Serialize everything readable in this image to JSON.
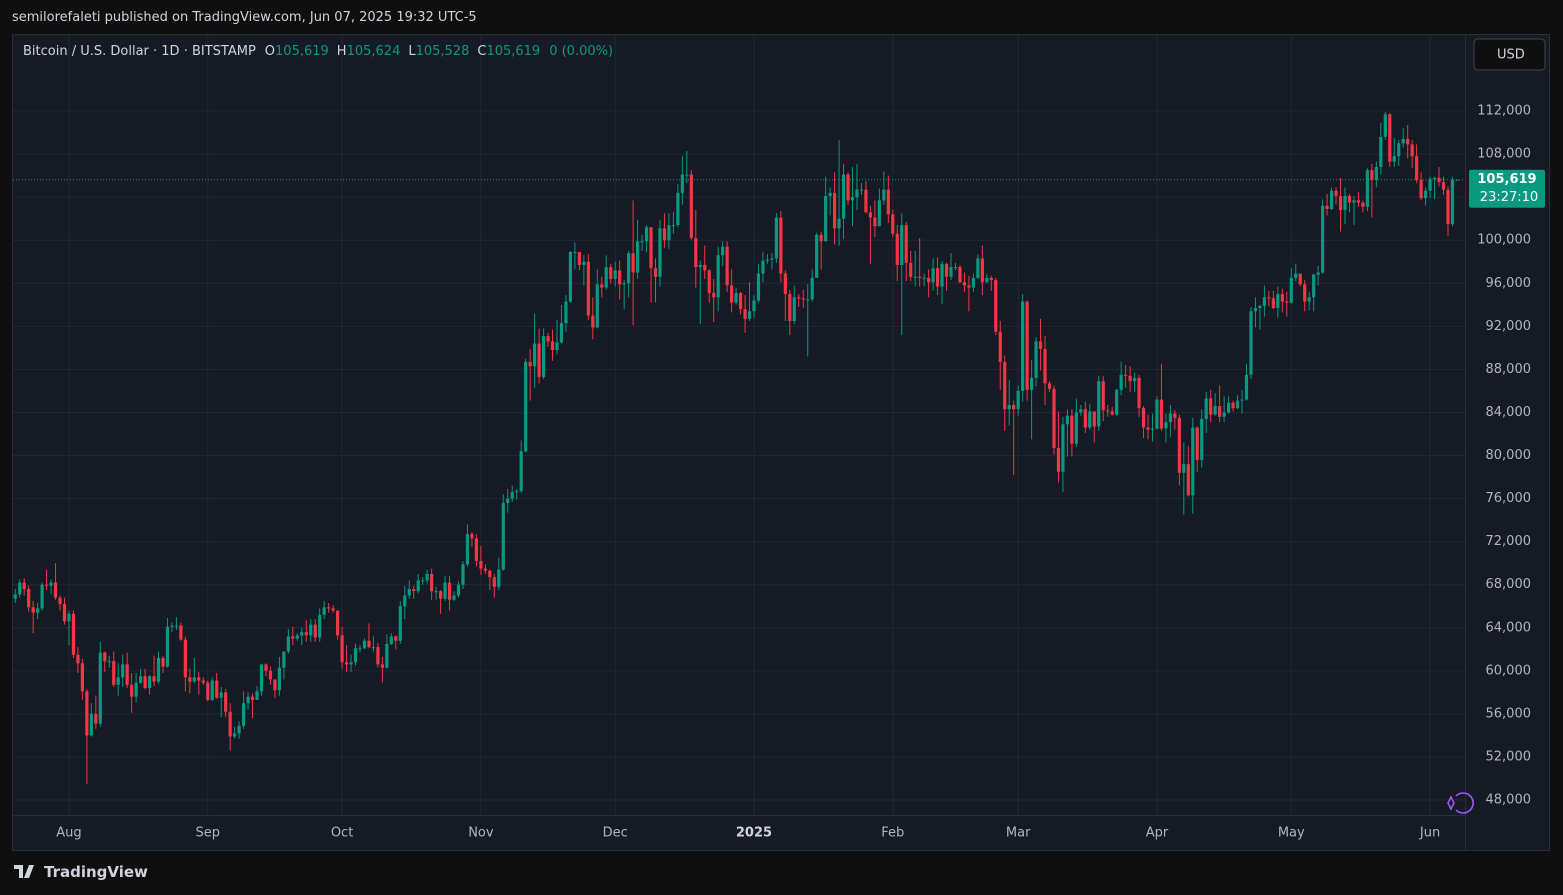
{
  "header": {
    "published": "semilorefaleti published on TradingView.com, Jun 07, 2025 19:32 UTC-5"
  },
  "chart_data": {
    "type": "candlestick",
    "symbol": "Bitcoin / U.S. Dollar · 1D · BITSTAMP",
    "ohlc_readout": [
      {
        "key": "O",
        "value": 105619,
        "label": "105,619"
      },
      {
        "key": "H",
        "value": 105624,
        "label": "105,624"
      },
      {
        "key": "L",
        "value": 105528,
        "label": "105,528"
      },
      {
        "key": "C",
        "value": 105619,
        "label": "105,619"
      }
    ],
    "change": "0 (0.00%)",
    "currency": "USD",
    "up_color": "#089981",
    "down_color": "#f23645",
    "grid": true,
    "open": [
      66700,
      67100,
      68200,
      67600,
      65900,
      65400,
      65800,
      68000,
      67900,
      68200,
      66800,
      66200,
      64600,
      65300,
      61500,
      60700,
      58100,
      54000,
      56000,
      55100,
      61700,
      60900,
      60900,
      58700,
      59400,
      60600,
      58700,
      57600,
      58900,
      59500,
      58400,
      59500,
      59000,
      61200,
      60400,
      64100,
      64200,
      64200,
      62900,
      59400,
      59000,
      59400,
      59100,
      58900,
      57300,
      59100,
      57500,
      58000,
      56200,
      53900,
      54200,
      54900,
      57000,
      57600,
      57300,
      58100,
      60600,
      60000,
      59200,
      58200,
      60300,
      61800,
      63200,
      63000,
      63300,
      63600,
      63300,
      64300,
      63100,
      65200,
      65900,
      65800,
      65600,
      63300,
      60800,
      60600,
      60800,
      62100,
      62100,
      62800,
      62200,
      62200,
      60600,
      60300,
      62500,
      63200,
      62800,
      66000,
      67000,
      67600,
      67400,
      68400,
      68400,
      69000,
      67400,
      67400,
      66700,
      68200,
      66600,
      67000,
      68000,
      69900,
      72700,
      72300,
      70200,
      69500,
      69300,
      68700,
      67800,
      69400,
      75600,
      76000,
      76600,
      76700,
      80400,
      88700,
      88300,
      90400,
      87300,
      91100,
      90600,
      89800,
      90500,
      92300,
      94300,
      98900,
      98900,
      97700,
      98000,
      93000,
      91900,
      95900,
      95600,
      97500,
      96400,
      97200,
      95900,
      96000,
      98800,
      97000,
      99900,
      99900,
      101200,
      97400,
      96600,
      101100,
      100000,
      101400,
      101400,
      104400,
      106100,
      106100,
      100200,
      97500,
      97700,
      97200,
      95100,
      94700,
      98600,
      99400,
      95800,
      94200,
      95100,
      93600,
      92700,
      93400,
      94400,
      96900,
      98100,
      98200,
      98300,
      102100,
      96900,
      95000,
      92500,
      94700,
      94600,
      94500,
      94500,
      96500,
      100500,
      99900,
      104100,
      104400,
      101100,
      102000,
      106100,
      103700,
      104000,
      104700,
      104700,
      102600,
      102100,
      101300,
      103700,
      104700,
      102400,
      100600,
      97700,
      101400,
      97900,
      96600,
      96600,
      96500,
      96500,
      96100,
      97400,
      95700,
      97800,
      96600,
      97500,
      97500,
      96100,
      95800,
      95600,
      96500,
      98300,
      96100,
      96500,
      96300,
      91500,
      88700,
      84300,
      84700,
      84300,
      86000,
      94300,
      86100,
      87200,
      90600,
      89900,
      86700,
      86200,
      80700,
      78500,
      82900,
      83700,
      81100,
      84000,
      84300,
      82600,
      84100,
      82700,
      86900,
      84200,
      84100,
      83800,
      86100,
      87500,
      87400,
      86900,
      87200,
      84400,
      82600,
      82400,
      82500,
      85200,
      82500,
      83100,
      83900,
      83500,
      78400,
      79200,
      76300,
      82600,
      79600,
      83400,
      85300,
      83800,
      84600,
      83600,
      84000,
      84900,
      84400,
      85100,
      85200,
      87500,
      93400,
      93700,
      93900,
      94700,
      94600,
      93700,
      95000,
      94300,
      94200,
      96500,
      96900,
      95900,
      94300,
      94700,
      96800,
      97000,
      103200,
      102900,
      104600,
      104100,
      102800,
      104100,
      103500,
      103700,
      103500,
      103100,
      106500,
      105600,
      106800,
      109600,
      111700,
      107300,
      107800,
      109000,
      109400,
      108900,
      107800,
      105600,
      103900,
      104600,
      105700,
      105800,
      105400,
      104700,
      101500,
      105619
    ],
    "high": [
      67600,
      68500,
      68600,
      67900,
      66500,
      66300,
      68200,
      69400,
      68500,
      70000,
      67000,
      66800,
      65600,
      65600,
      62200,
      61100,
      58300,
      57000,
      57700,
      62700,
      61800,
      61400,
      61800,
      60700,
      61500,
      61700,
      59800,
      59800,
      60200,
      60200,
      59600,
      61400,
      61800,
      61400,
      64900,
      64500,
      65000,
      64500,
      63200,
      60200,
      61200,
      59900,
      59400,
      59100,
      59400,
      59800,
      58500,
      58300,
      57000,
      54800,
      55300,
      58100,
      58000,
      57900,
      58600,
      60600,
      60700,
      60400,
      59200,
      61300,
      61800,
      63900,
      64100,
      63500,
      64000,
      64700,
      64800,
      64800,
      65800,
      66500,
      66300,
      66100,
      65600,
      64100,
      62400,
      61500,
      62500,
      62400,
      63000,
      64400,
      63200,
      62600,
      61300,
      63400,
      63500,
      63300,
      66500,
      67900,
      68400,
      67900,
      69000,
      68700,
      69400,
      69500,
      67800,
      67500,
      68800,
      68800,
      67400,
      68300,
      70200,
      73600,
      72900,
      72700,
      71600,
      69900,
      69400,
      69000,
      70500,
      76400,
      76900,
      77200,
      76900,
      81400,
      89000,
      89900,
      93200,
      91800,
      91800,
      91400,
      91700,
      92600,
      94000,
      94900,
      99000,
      99800,
      98800,
      98600,
      98700,
      94700,
      97300,
      96600,
      98600,
      97800,
      98000,
      98100,
      96300,
      99000,
      103700,
      101900,
      100500,
      101400,
      101200,
      98300,
      101900,
      102500,
      102500,
      102600,
      105200,
      107800,
      108300,
      106500,
      102800,
      98100,
      99500,
      97300,
      96400,
      99400,
      99900,
      99900,
      97300,
      95600,
      95200,
      94900,
      96100,
      94900,
      97800,
      98900,
      98700,
      98800,
      102500,
      102700,
      97200,
      95400,
      95800,
      95000,
      95400,
      95900,
      97300,
      100700,
      100800,
      105900,
      104900,
      106300,
      109300,
      107100,
      106300,
      106800,
      107100,
      105300,
      105500,
      103200,
      103700,
      104800,
      106400,
      106000,
      102800,
      101400,
      102500,
      101700,
      99000,
      99000,
      100200,
      96900,
      97300,
      98300,
      98400,
      98100,
      97900,
      98800,
      97900,
      97700,
      97000,
      96700,
      96900,
      98700,
      99500,
      96900,
      96700,
      96500,
      92500,
      89300,
      87000,
      85100,
      86500,
      95000,
      94400,
      88900,
      91000,
      92700,
      91100,
      86900,
      86500,
      84100,
      83600,
      84300,
      84300,
      85300,
      84700,
      85000,
      84800,
      84100,
      87400,
      87400,
      84700,
      84500,
      86200,
      88700,
      88400,
      88300,
      87700,
      87500,
      84600,
      83800,
      83900,
      85500,
      88500,
      83900,
      84700,
      84200,
      83800,
      81200,
      80900,
      83500,
      82700,
      84300,
      85900,
      86100,
      85800,
      86500,
      85500,
      85500,
      85100,
      85600,
      86100,
      88500,
      93800,
      94700,
      94000,
      95800,
      95300,
      95300,
      95700,
      95500,
      95200,
      97400,
      97800,
      96900,
      96300,
      95200,
      96900,
      97600,
      103800,
      104300,
      104900,
      104900,
      105800,
      104900,
      104300,
      104100,
      104500,
      103700,
      106700,
      107100,
      107300,
      110900,
      111900,
      111800,
      109500,
      109300,
      110400,
      110700,
      109300,
      108900,
      106300,
      104900,
      105900,
      105900,
      106800,
      105900,
      105000,
      105900,
      105624
    ],
    "low": [
      66300,
      66800,
      67000,
      65500,
      63500,
      64800,
      65600,
      67500,
      67100,
      66600,
      65600,
      64300,
      62400,
      61200,
      59800,
      57300,
      49500,
      53900,
      54600,
      54800,
      59900,
      60300,
      58500,
      57700,
      58500,
      58400,
      56100,
      57100,
      58800,
      58300,
      57800,
      58600,
      58800,
      59800,
      60300,
      63600,
      63800,
      62800,
      58100,
      57900,
      58900,
      57800,
      58700,
      57200,
      57200,
      57400,
      55700,
      55700,
      52600,
      53700,
      53700,
      54600,
      56400,
      55600,
      57300,
      57700,
      59500,
      58700,
      57500,
      57700,
      59200,
      61600,
      62400,
      62800,
      62400,
      62700,
      62700,
      62700,
      62700,
      64800,
      65400,
      65400,
      62900,
      60200,
      59900,
      59900,
      60500,
      61700,
      62000,
      62100,
      61800,
      60300,
      58900,
      60200,
      62400,
      62000,
      62500,
      64800,
      66700,
      66700,
      67200,
      68000,
      68100,
      66600,
      66600,
      65300,
      66500,
      65600,
      66500,
      66800,
      67600,
      69700,
      71500,
      69700,
      68900,
      69000,
      67500,
      66800,
      67500,
      69300,
      74700,
      75700,
      75900,
      76500,
      80300,
      85100,
      86300,
      86700,
      87100,
      90100,
      88800,
      89400,
      90400,
      91500,
      94200,
      97300,
      97200,
      95800,
      92600,
      90800,
      91800,
      94700,
      95400,
      96000,
      95700,
      94500,
      93600,
      94700,
      92100,
      96400,
      99000,
      98900,
      94200,
      94200,
      95700,
      99300,
      99200,
      100600,
      101200,
      103300,
      105300,
      100000,
      95600,
      92200,
      96400,
      94200,
      92400,
      93400,
      97600,
      95200,
      93300,
      94000,
      93100,
      91400,
      92500,
      92800,
      94200,
      96100,
      97800,
      97300,
      97900,
      96100,
      92500,
      91200,
      92200,
      93800,
      93700,
      89200,
      94300,
      96500,
      97300,
      99900,
      102300,
      99600,
      99500,
      100100,
      103300,
      101300,
      102800,
      104200,
      102500,
      97800,
      100300,
      101300,
      103300,
      101600,
      100300,
      96200,
      91200,
      96200,
      96200,
      95700,
      95700,
      95700,
      94700,
      95300,
      94900,
      94100,
      95300,
      96300,
      97200,
      96000,
      95200,
      93400,
      95200,
      96400,
      94900,
      96000,
      95300,
      91200,
      86100,
      82300,
      82800,
      78200,
      83700,
      85000,
      85100,
      81500,
      86400,
      87900,
      84700,
      85900,
      80100,
      77500,
      76600,
      79900,
      79900,
      80800,
      83700,
      82100,
      82400,
      81200,
      82300,
      83200,
      83600,
      83700,
      83700,
      85600,
      86300,
      85900,
      85900,
      83600,
      81600,
      81500,
      81300,
      82400,
      82300,
      81200,
      81700,
      82400,
      77200,
      74500,
      76200,
      74600,
      78500,
      78900,
      82100,
      83100,
      83700,
      83100,
      83100,
      83900,
      84100,
      84300,
      83900,
      85100,
      87100,
      91900,
      91700,
      92900,
      93900,
      93600,
      92800,
      93300,
      92900,
      94100,
      96200,
      95700,
      93400,
      93500,
      93400,
      95800,
      96900,
      102300,
      102800,
      103300,
      100800,
      101500,
      102600,
      101400,
      103100,
      102600,
      102700,
      102100,
      104900,
      106100,
      109300,
      106800,
      106800,
      106900,
      108600,
      107600,
      106700,
      105300,
      103700,
      103200,
      103900,
      103800,
      105000,
      104200,
      100400,
      101300,
      105528
    ],
    "close": [
      67100,
      68200,
      67600,
      65900,
      65400,
      65800,
      68000,
      67900,
      68200,
      66800,
      66200,
      64600,
      65300,
      61500,
      60700,
      58100,
      54000,
      56000,
      55100,
      61700,
      60900,
      60900,
      58700,
      59400,
      60600,
      58700,
      57600,
      58900,
      59500,
      58400,
      59500,
      59000,
      61200,
      60400,
      64100,
      64200,
      64200,
      62900,
      59400,
      59000,
      59400,
      59100,
      58900,
      57300,
      59100,
      57500,
      58000,
      56200,
      53900,
      54200,
      54900,
      57000,
      57600,
      57300,
      58100,
      60600,
      60000,
      59200,
      58200,
      60300,
      61800,
      63200,
      63000,
      63300,
      63600,
      63300,
      64300,
      63100,
      65200,
      65900,
      65800,
      65600,
      63300,
      60800,
      60600,
      60800,
      62100,
      62100,
      62800,
      62200,
      62200,
      60600,
      60300,
      62500,
      63200,
      62800,
      66000,
      67000,
      67600,
      67400,
      68400,
      68400,
      69000,
      67400,
      67400,
      66700,
      68200,
      66600,
      67000,
      68000,
      69900,
      72700,
      72300,
      70200,
      69500,
      69300,
      68700,
      67800,
      69400,
      75600,
      76000,
      76600,
      76700,
      80400,
      88700,
      88300,
      90400,
      87300,
      91100,
      90600,
      89800,
      90500,
      92300,
      94300,
      98900,
      98900,
      97700,
      98000,
      93000,
      91900,
      95900,
      95600,
      97500,
      96400,
      97200,
      95900,
      96000,
      98800,
      97000,
      99900,
      99900,
      101200,
      97400,
      96600,
      101100,
      100000,
      101400,
      101400,
      104400,
      106100,
      106100,
      100200,
      97500,
      97700,
      97200,
      95100,
      94700,
      98600,
      99400,
      95800,
      94200,
      95100,
      93600,
      92700,
      93400,
      94400,
      96900,
      98100,
      98200,
      98300,
      102100,
      96900,
      95000,
      92500,
      94700,
      94600,
      94500,
      94500,
      96500,
      100500,
      99900,
      104100,
      104400,
      101100,
      102000,
      106100,
      103700,
      104000,
      104700,
      104700,
      102600,
      102100,
      101300,
      103700,
      104700,
      102400,
      100600,
      97700,
      101400,
      97900,
      96600,
      96600,
      96500,
      96500,
      96100,
      97400,
      95700,
      97800,
      96600,
      97500,
      97500,
      96100,
      95800,
      95600,
      96500,
      98300,
      96100,
      96500,
      96300,
      91500,
      88700,
      84300,
      84700,
      84300,
      86000,
      94300,
      86100,
      87200,
      90600,
      89900,
      86700,
      86200,
      80700,
      78500,
      82900,
      83700,
      81100,
      84000,
      84300,
      82600,
      84100,
      82700,
      86900,
      84200,
      84100,
      83800,
      86100,
      87500,
      87400,
      86900,
      87200,
      84400,
      82600,
      82400,
      82500,
      85200,
      82500,
      83100,
      83900,
      83500,
      78400,
      79200,
      76300,
      82600,
      79600,
      83400,
      85300,
      83800,
      84600,
      83600,
      84000,
      84900,
      84400,
      85100,
      85200,
      87500,
      93400,
      93700,
      93900,
      94700,
      94600,
      93700,
      95000,
      94300,
      94200,
      96500,
      96900,
      95900,
      94300,
      94700,
      96800,
      97000,
      103200,
      102900,
      104600,
      104100,
      102800,
      104100,
      103500,
      103700,
      103500,
      103100,
      106500,
      105600,
      106800,
      109600,
      111700,
      107300,
      107800,
      109000,
      109400,
      108900,
      107800,
      105600,
      103900,
      104600,
      105700,
      105800,
      105400,
      104700,
      101500,
      105619,
      105619
    ],
    "xlim": [
      -0.5,
      323.8
    ],
    "xticks": [
      {
        "value": 12,
        "label": "Aug"
      },
      {
        "value": 43,
        "label": "Sep"
      },
      {
        "value": 73,
        "label": "Oct"
      },
      {
        "value": 104,
        "label": "Nov"
      },
      {
        "value": 134,
        "label": "Dec"
      },
      {
        "value": 165,
        "label": "2025",
        "bold": true
      },
      {
        "value": 196,
        "label": "Feb"
      },
      {
        "value": 224,
        "label": "Mar"
      },
      {
        "value": 255,
        "label": "Apr"
      },
      {
        "value": 285,
        "label": "May"
      },
      {
        "value": 316,
        "label": "Jun"
      }
    ],
    "ylim": [
      43360,
      119060
    ],
    "yticks": [
      {
        "value": 48000,
        "label": "48,000"
      },
      {
        "value": 52000,
        "label": "52,000"
      },
      {
        "value": 56000,
        "label": "56,000"
      },
      {
        "value": 60000,
        "label": "60,000"
      },
      {
        "value": 64000,
        "label": "64,000"
      },
      {
        "value": 68000,
        "label": "68,000"
      },
      {
        "value": 72000,
        "label": "72,000"
      },
      {
        "value": 76000,
        "label": "76,000"
      },
      {
        "value": 80000,
        "label": "80,000"
      },
      {
        "value": 84000,
        "label": "84,000"
      },
      {
        "value": 88000,
        "label": "88,000"
      },
      {
        "value": 92000,
        "label": "92,000"
      },
      {
        "value": 96000,
        "label": "96,000"
      },
      {
        "value": 100000,
        "label": "100,000"
      },
      {
        "value": 104000,
        "label": "104,000"
      },
      {
        "value": 108000,
        "label": "108,000"
      },
      {
        "value": 112000,
        "label": "112,000"
      }
    ],
    "last_price": {
      "value": 105619,
      "label": "105,619"
    },
    "countdown": "23:27:10"
  },
  "footer": {
    "brand": "TradingView"
  }
}
